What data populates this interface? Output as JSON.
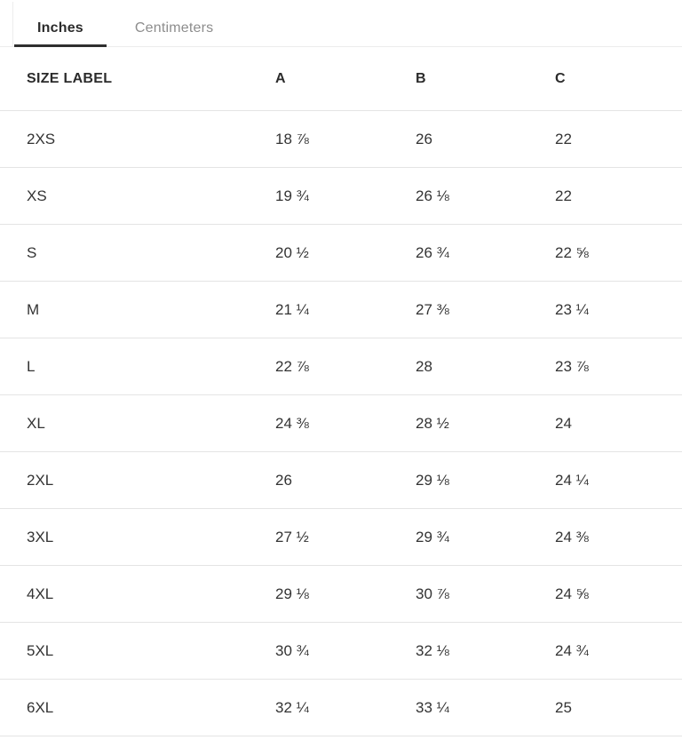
{
  "tabs": {
    "items": [
      {
        "label": "Inches",
        "active": true
      },
      {
        "label": "Centimeters",
        "active": false
      }
    ]
  },
  "table": {
    "headers": {
      "size": "SIZE LABEL",
      "a": "A",
      "b": "B",
      "c": "C"
    },
    "rows": [
      {
        "size": "2XS",
        "a": "18 ⅞",
        "b": "26",
        "c": "22"
      },
      {
        "size": "XS",
        "a": "19 ¾",
        "b": "26 ⅛",
        "c": "22"
      },
      {
        "size": "S",
        "a": "20 ½",
        "b": "26 ¾",
        "c": "22 ⅝"
      },
      {
        "size": "M",
        "a": "21 ¼",
        "b": "27 ⅜",
        "c": "23 ¼"
      },
      {
        "size": "L",
        "a": "22 ⅞",
        "b": "28",
        "c": "23 ⅞"
      },
      {
        "size": "XL",
        "a": "24 ⅜",
        "b": "28 ½",
        "c": "24"
      },
      {
        "size": "2XL",
        "a": "26",
        "b": "29 ⅛",
        "c": "24 ¼"
      },
      {
        "size": "3XL",
        "a": "27 ½",
        "b": "29 ¾",
        "c": "24 ⅜"
      },
      {
        "size": "4XL",
        "a": "29 ⅛",
        "b": "30 ⅞",
        "c": "24 ⅝"
      },
      {
        "size": "5XL",
        "a": "30 ¾",
        "b": "32 ⅛",
        "c": "24 ¾"
      },
      {
        "size": "6XL",
        "a": "32 ¼",
        "b": "33 ¼",
        "c": "25"
      }
    ]
  },
  "colors": {
    "accent_underline": "#2f2f2f",
    "text_primary": "#2b2b2b",
    "text_body": "#333333",
    "text_muted": "#8d8d8d",
    "divider": "#e4e4e4"
  }
}
